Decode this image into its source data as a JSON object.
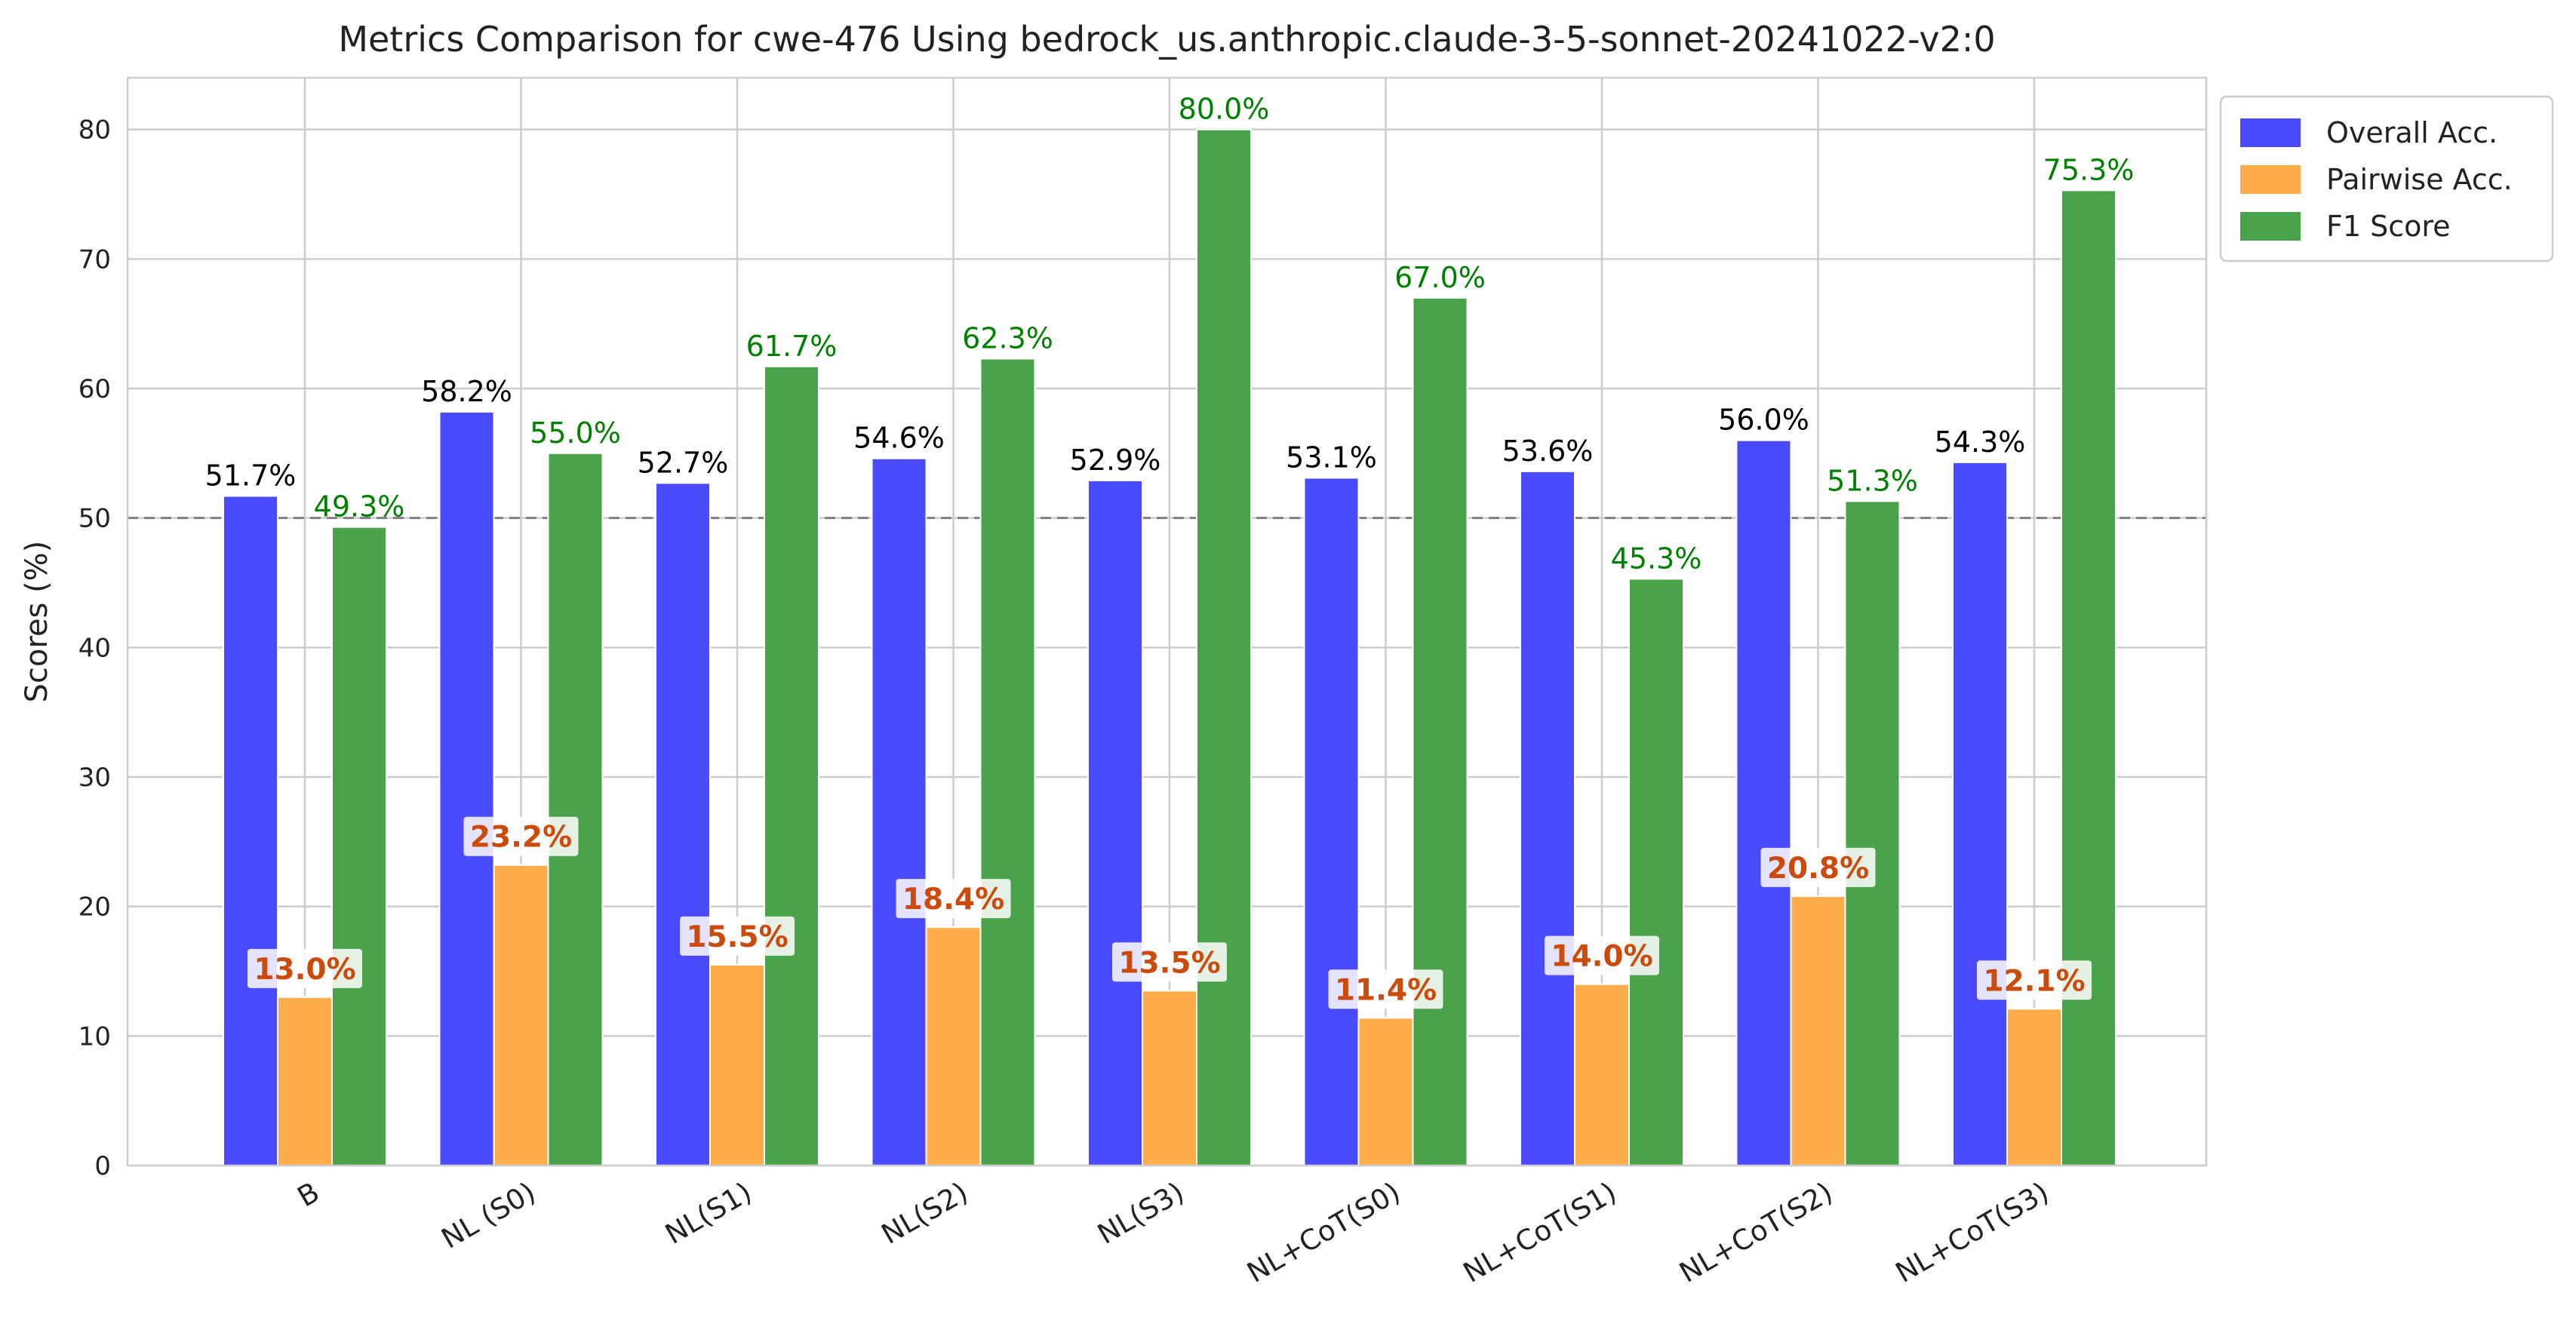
{
  "chart_data": {
    "type": "bar",
    "title": "Metrics Comparison for cwe-476 Using bedrock_us.anthropic.claude-3-5-sonnet-20241022-v2:0",
    "xlabel": "",
    "ylabel": "Scores (%)",
    "ylim": [
      0,
      84
    ],
    "yticks": [
      0,
      10,
      20,
      30,
      40,
      50,
      60,
      70,
      80
    ],
    "grid": true,
    "legend_position": "outside-top-right",
    "reference_line": {
      "y": 50,
      "style": "dashed",
      "color": "#808080"
    },
    "categories": [
      "B",
      "NL (S0)",
      "NL(S1)",
      "NL(S2)",
      "NL(S3)",
      "NL+CoT(S0)",
      "NL+CoT(S1)",
      "NL+CoT(S2)",
      "NL+CoT(S3)"
    ],
    "series": [
      {
        "name": "Overall Acc.",
        "color": "#4a4aff",
        "label_color": "#000000",
        "values": [
          51.7,
          58.2,
          52.7,
          54.6,
          52.9,
          53.1,
          53.6,
          56.0,
          54.3
        ],
        "labels": [
          "51.7%",
          "58.2%",
          "52.7%",
          "54.6%",
          "52.9%",
          "53.1%",
          "53.6%",
          "56.0%",
          "54.3%"
        ]
      },
      {
        "name": "Pairwise Acc.",
        "color": "#ffad4a",
        "label_color": "#cc4b0c",
        "values": [
          13.0,
          23.2,
          15.5,
          18.4,
          13.5,
          11.4,
          14.0,
          20.8,
          12.1
        ],
        "labels": [
          "13.0%",
          "23.2%",
          "15.5%",
          "18.4%",
          "13.5%",
          "11.4%",
          "14.0%",
          "20.8%",
          "12.1%"
        ]
      },
      {
        "name": "F1 Score",
        "color": "#4aa24a",
        "label_color": "#008000",
        "values": [
          49.3,
          55.0,
          61.7,
          62.3,
          80.0,
          67.0,
          45.3,
          51.3,
          75.3
        ],
        "labels": [
          "49.3%",
          "55.0%",
          "61.7%",
          "62.3%",
          "80.0%",
          "67.0%",
          "45.3%",
          "51.3%",
          "75.3%"
        ]
      }
    ]
  }
}
